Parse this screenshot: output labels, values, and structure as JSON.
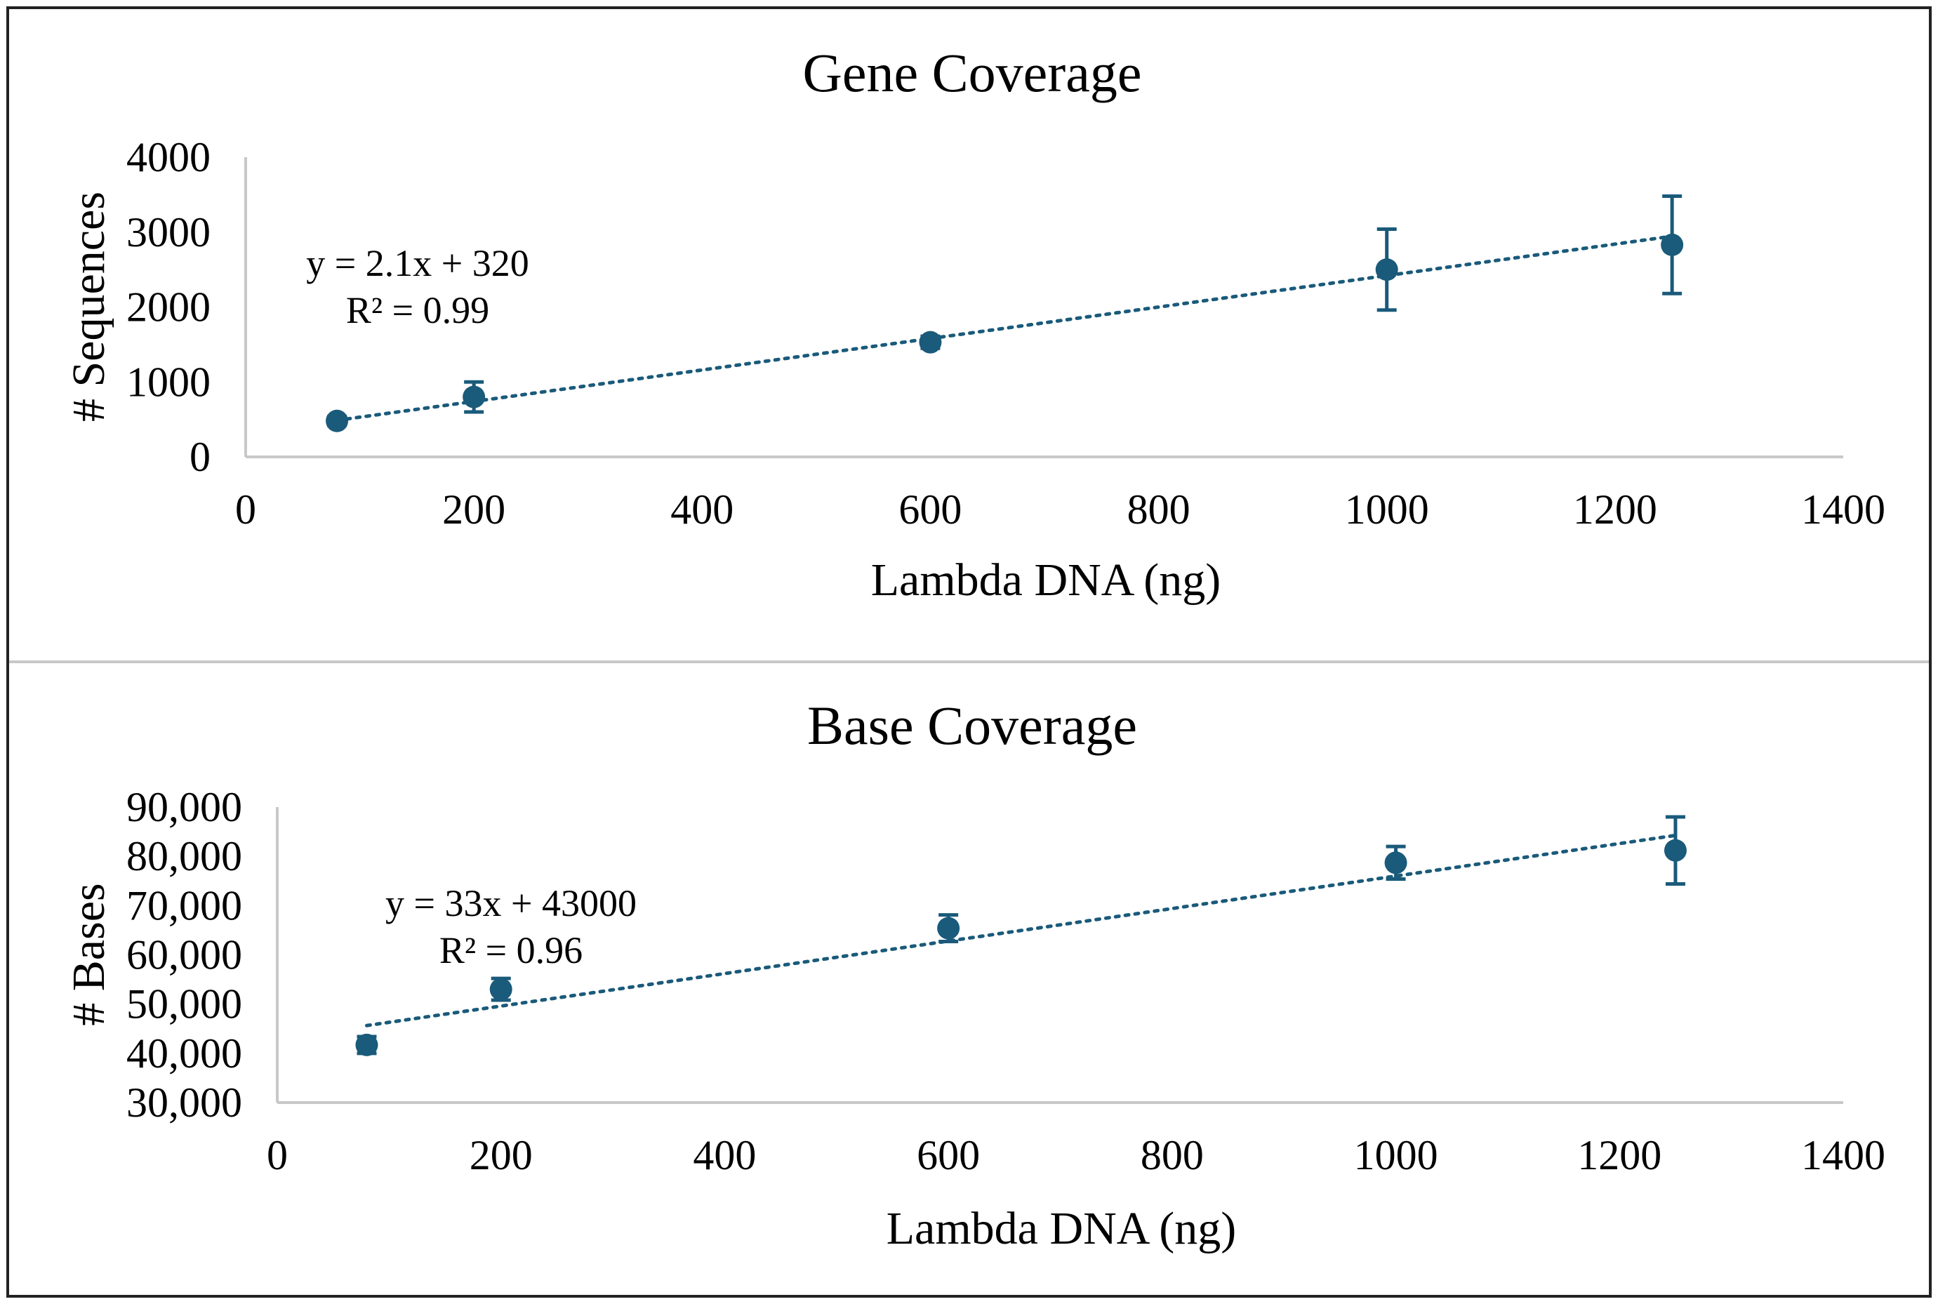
{
  "chart_data": [
    {
      "type": "scatter",
      "title": "Gene Coverage",
      "xlabel": "Lambda DNA (ng)",
      "ylabel": "# Sequences",
      "xlim": [
        0,
        1400
      ],
      "ylim": [
        0,
        4000
      ],
      "x_ticks": [
        0,
        200,
        400,
        600,
        800,
        1000,
        1200,
        1400
      ],
      "y_ticks": [
        0,
        1000,
        2000,
        3000,
        4000
      ],
      "x_tick_labels": [
        "0",
        "200",
        "400",
        "600",
        "800",
        "1000",
        "1200",
        "1400"
      ],
      "y_tick_labels": [
        "0",
        "1000",
        "2000",
        "3000",
        "4000"
      ],
      "series": [
        {
          "name": "Gene Coverage",
          "color": "#1a5a7a",
          "x": [
            80,
            200,
            600,
            1000,
            1250
          ],
          "y": [
            480,
            800,
            1530,
            2500,
            2830
          ],
          "error": [
            60,
            200,
            80,
            540,
            650
          ]
        }
      ],
      "trendline": {
        "type": "linear",
        "slope": 2.1,
        "intercept": 320,
        "x_range": [
          80,
          1250
        ],
        "equation": "y = 2.1x + 320",
        "r_squared": "R² = 0.99"
      }
    },
    {
      "type": "scatter",
      "title": "Base Coverage",
      "xlabel": "Lambda DNA (ng)",
      "ylabel": "# Bases",
      "xlim": [
        0,
        1400
      ],
      "ylim": [
        30000,
        90000
      ],
      "x_ticks": [
        0,
        200,
        400,
        600,
        800,
        1000,
        1200,
        1400
      ],
      "y_ticks": [
        30000,
        40000,
        50000,
        60000,
        70000,
        80000,
        90000
      ],
      "x_tick_labels": [
        "0",
        "200",
        "400",
        "600",
        "800",
        "1000",
        "1200",
        "1400"
      ],
      "y_tick_labels": [
        "30,000",
        "40,000",
        "50,000",
        "60,000",
        "70,000",
        "80,000",
        "90,000"
      ],
      "series": [
        {
          "name": "Base Coverage",
          "color": "#1a5a7a",
          "x": [
            80,
            200,
            600,
            1000,
            1250
          ],
          "y": [
            41700,
            53000,
            65400,
            78700,
            81200
          ],
          "error": [
            1700,
            2200,
            2700,
            3300,
            6800
          ]
        }
      ],
      "trendline": {
        "type": "linear",
        "slope": 33,
        "intercept": 43000,
        "x_range": [
          80,
          1250
        ],
        "equation": "y = 33x + 43000",
        "r_squared": "R² = 0.96"
      }
    }
  ]
}
